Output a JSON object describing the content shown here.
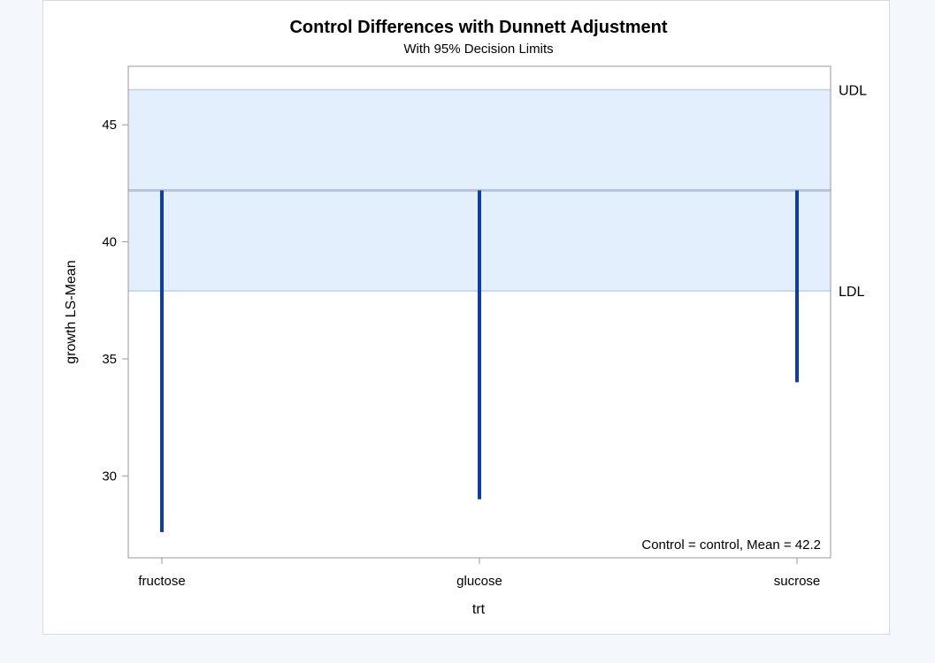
{
  "chart_data": {
    "type": "bar",
    "title": "Control Differences with Dunnett Adjustment",
    "subtitle": "With 95% Decision Limits",
    "xlabel": "trt",
    "ylabel": "growth LS-Mean",
    "categories": [
      "fructose",
      "glucose",
      "sucrose"
    ],
    "values": [
      27.6,
      29.0,
      34.0
    ],
    "control_mean": 42.2,
    "ldl": 37.9,
    "udl": 46.5,
    "ldl_label": "LDL",
    "udl_label": "UDL",
    "ylim": [
      26.5,
      47.5
    ],
    "yticks": [
      30,
      35,
      40,
      45
    ],
    "annotation": "Control = control, Mean = 42.2",
    "colors": {
      "bar": "#0c3f9f",
      "band": "#e3effc",
      "band_edge": "#bcd3ea",
      "control_line": "#b7c5d8",
      "axis": "#9a9a9a"
    }
  }
}
